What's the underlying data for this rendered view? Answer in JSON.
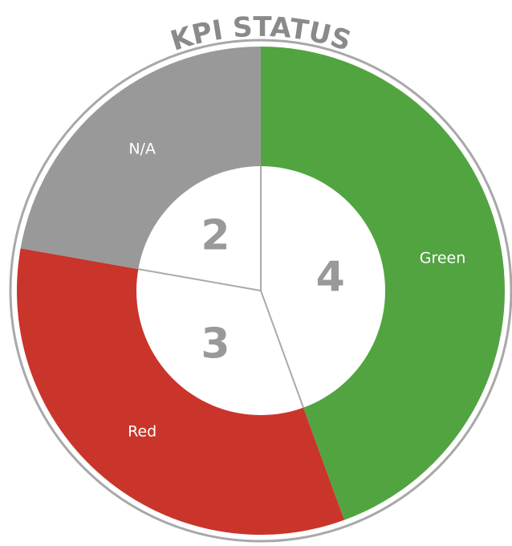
{
  "chart_data": {
    "type": "donut",
    "title": "KPI STATUS",
    "categories": [
      "Green",
      "Red",
      "N/A"
    ],
    "values": [
      4,
      3,
      2
    ],
    "colors": [
      "#52a441",
      "#c9352b",
      "#999999"
    ]
  }
}
